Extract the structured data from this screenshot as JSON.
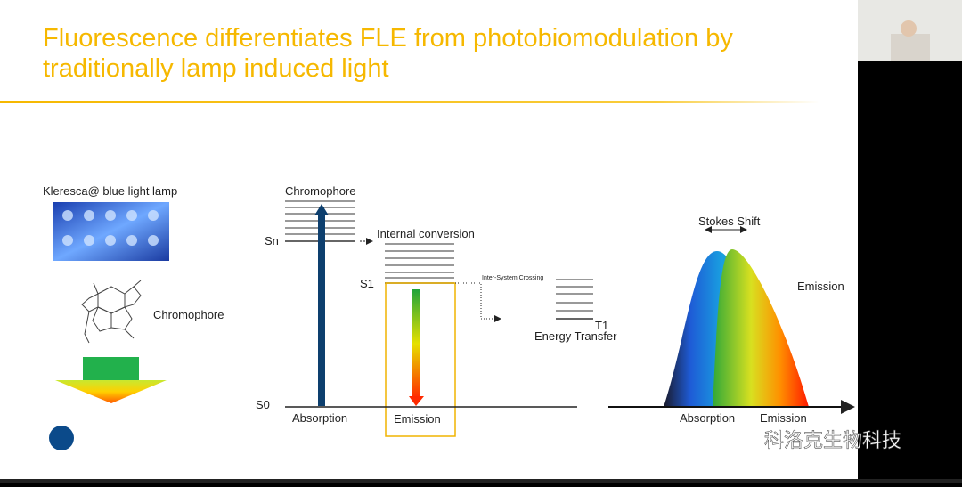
{
  "slide": {
    "title_lines": [
      "Fluorescence differentiates FLE from photobiomodulation by",
      "traditionally lamp induced light"
    ],
    "lamp_caption": "Kleresca@ blue light lamp",
    "molecule_label": "Chromophore",
    "jablonski": {
      "chromophore": "Chromophore",
      "sn": "Sn",
      "internal_conversion": "Internal conversion",
      "s1": "S1",
      "inter_system_crossing": "Inter-System Crossing",
      "t1": "T1",
      "energy_transfer": "Energy Transfer",
      "s0": "S0",
      "absorption": "Absorption",
      "emission": "Emission"
    },
    "spectrum": {
      "stokes_shift": "Stokes Shift",
      "emission_label": "Emission",
      "absorption": "Absorption",
      "emission": "Emission"
    },
    "watermark": "科洛克生物科技"
  }
}
